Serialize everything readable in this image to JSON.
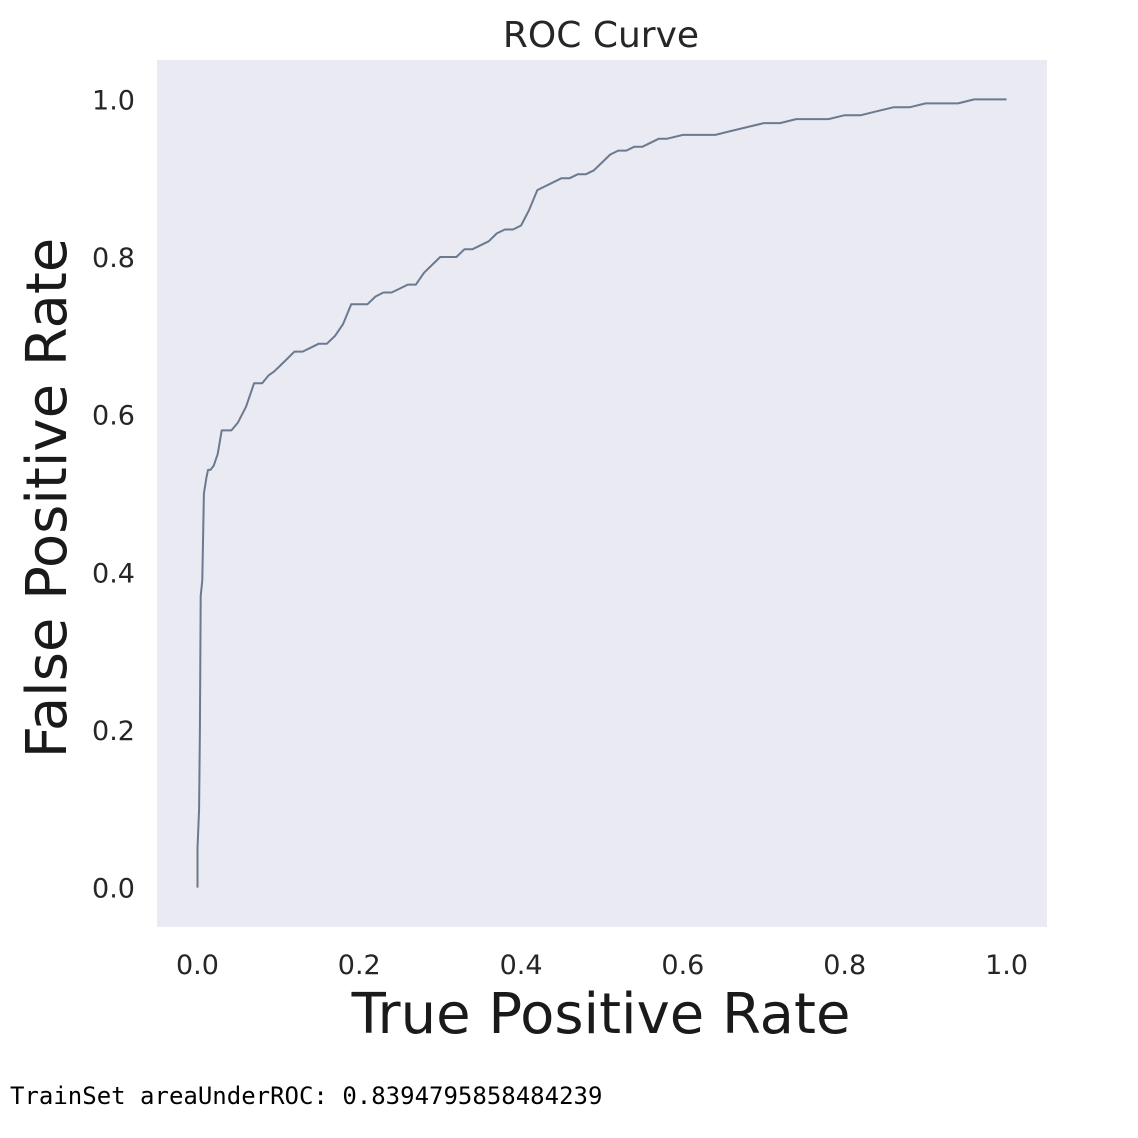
{
  "chart_data": {
    "type": "line",
    "title": "ROC Curve",
    "xlabel": "True Positive Rate",
    "ylabel": "False Positive Rate",
    "xlim": [
      -0.05,
      1.05
    ],
    "ylim": [
      -0.05,
      1.05
    ],
    "xticks": [
      "0.0",
      "0.2",
      "0.4",
      "0.6",
      "0.8",
      "1.0"
    ],
    "yticks": [
      "0.0",
      "0.2",
      "0.4",
      "0.6",
      "0.8",
      "1.0"
    ],
    "grid": false,
    "background_color": "#eaeaf2",
    "line_color": "#6b7a8f",
    "series": [
      {
        "x": [
          0.0,
          0.0,
          0.002,
          0.003,
          0.004,
          0.006,
          0.008,
          0.011,
          0.013,
          0.016,
          0.02,
          0.025,
          0.03,
          0.036,
          0.042,
          0.05,
          0.06,
          0.07,
          0.08,
          0.088,
          0.095,
          0.1,
          0.11,
          0.12,
          0.13,
          0.14,
          0.15,
          0.16,
          0.17,
          0.18,
          0.19,
          0.2,
          0.21,
          0.22,
          0.23,
          0.24,
          0.25,
          0.26,
          0.27,
          0.28,
          0.29,
          0.3,
          0.31,
          0.32,
          0.33,
          0.34,
          0.36,
          0.37,
          0.38,
          0.39,
          0.4,
          0.41,
          0.42,
          0.43,
          0.44,
          0.45,
          0.46,
          0.47,
          0.48,
          0.49,
          0.5,
          0.51,
          0.52,
          0.53,
          0.54,
          0.55,
          0.56,
          0.57,
          0.58,
          0.6,
          0.62,
          0.64,
          0.66,
          0.68,
          0.7,
          0.72,
          0.74,
          0.76,
          0.78,
          0.8,
          0.82,
          0.84,
          0.86,
          0.88,
          0.9,
          0.92,
          0.93,
          0.94,
          0.96,
          0.98,
          0.99,
          1.0
        ],
        "y": [
          0.0,
          0.05,
          0.1,
          0.2,
          0.37,
          0.39,
          0.5,
          0.52,
          0.53,
          0.53,
          0.535,
          0.55,
          0.58,
          0.58,
          0.58,
          0.59,
          0.61,
          0.64,
          0.64,
          0.65,
          0.655,
          0.66,
          0.67,
          0.68,
          0.68,
          0.685,
          0.69,
          0.69,
          0.7,
          0.715,
          0.74,
          0.74,
          0.74,
          0.75,
          0.755,
          0.755,
          0.76,
          0.765,
          0.765,
          0.78,
          0.79,
          0.8,
          0.8,
          0.8,
          0.81,
          0.81,
          0.82,
          0.83,
          0.835,
          0.835,
          0.84,
          0.86,
          0.885,
          0.89,
          0.895,
          0.9,
          0.9,
          0.905,
          0.905,
          0.91,
          0.92,
          0.93,
          0.935,
          0.935,
          0.94,
          0.94,
          0.945,
          0.95,
          0.95,
          0.955,
          0.955,
          0.955,
          0.96,
          0.965,
          0.97,
          0.97,
          0.975,
          0.975,
          0.975,
          0.98,
          0.98,
          0.985,
          0.99,
          0.99,
          0.995,
          0.995,
          0.995,
          0.995,
          1.0,
          1.0,
          1.0,
          1.0
        ]
      }
    ]
  },
  "output": {
    "text": "TrainSet areaUnderROC: 0.8394795858484239"
  }
}
